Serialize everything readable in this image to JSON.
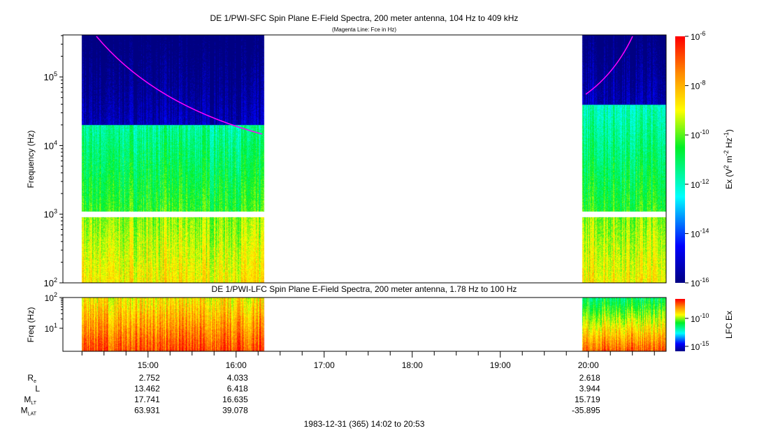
{
  "chart_data": [
    {
      "type": "heatmap",
      "title": "DE 1/PWI-SFC  Spin Plane E-Field Spectra, 200 meter antenna, 104 Hz to 409 kHz",
      "subtitle": "(Magenta Line: Fce in Hz)",
      "ylabel": "Frequency (Hz)",
      "yscale": "log",
      "ylim": [
        100,
        409000
      ],
      "yticks": [
        {
          "exp": "2",
          "v": 100
        },
        {
          "exp": "3",
          "v": 1000
        },
        {
          "exp": "4",
          "v": 10000
        },
        {
          "exp": "5",
          "v": 100000
        }
      ],
      "colorbar": {
        "label": "Ex (V2 m-2 Hz-1)",
        "label_parts": [
          "Ex (V",
          "2",
          " m",
          "-2",
          " Hz",
          "-1",
          ")"
        ],
        "scale": "log",
        "range": [
          1e-16,
          1e-06
        ],
        "ticks": [
          "-6",
          "-8",
          "-10",
          "-12",
          "-14",
          "-16"
        ]
      },
      "data_segments": [
        {
          "start": "14:15",
          "end": "16:19"
        },
        {
          "start": "19:56",
          "end": "20:53"
        }
      ],
      "data_gap_hz": 1000,
      "overlay": {
        "name": "Fce",
        "color": "#ff00ff"
      }
    },
    {
      "type": "heatmap",
      "title": "DE 1/PWI-LFC  Spin Plane E-Field Spectra, 200 meter antenna, 1.78 Hz to 100 Hz",
      "ylabel": "Freq (Hz)",
      "yscale": "log",
      "ylim": [
        1.78,
        100
      ],
      "yticks": [
        {
          "exp": "1",
          "v": 10
        },
        {
          "exp": "2",
          "v": 100
        }
      ],
      "colorbar": {
        "label": "LFC Ex",
        "scale": "log",
        "range": [
          1.3e-16,
          3e-07
        ],
        "ticks": [
          "-10",
          "-15"
        ]
      },
      "data_segments": [
        {
          "start": "14:15",
          "end": "16:19"
        },
        {
          "start": "19:56",
          "end": "20:53"
        }
      ]
    }
  ],
  "xaxis": {
    "start": "14:02",
    "end": "20:53",
    "ticks": [
      "15:00",
      "16:00",
      "17:00",
      "18:00",
      "19:00",
      "20:00"
    ],
    "caption": "1983-12-31 (365) 14:02 to 20:53"
  },
  "ephemeris": {
    "rows": [
      {
        "label": "R",
        "sub": "e",
        "values": [
          "2.752",
          "4.033",
          "",
          "",
          "",
          "2.618"
        ]
      },
      {
        "label": "L",
        "sub": "",
        "values": [
          "13.462",
          "6.418",
          "",
          "",
          "",
          "3.944"
        ]
      },
      {
        "label": "M",
        "sub": "LT",
        "values": [
          "17.741",
          "16.635",
          "",
          "",
          "",
          "15.719"
        ]
      },
      {
        "label": "M",
        "sub": "LAT",
        "values": [
          "63.931",
          "39.078",
          "",
          "",
          "",
          "-35.895"
        ]
      }
    ]
  }
}
